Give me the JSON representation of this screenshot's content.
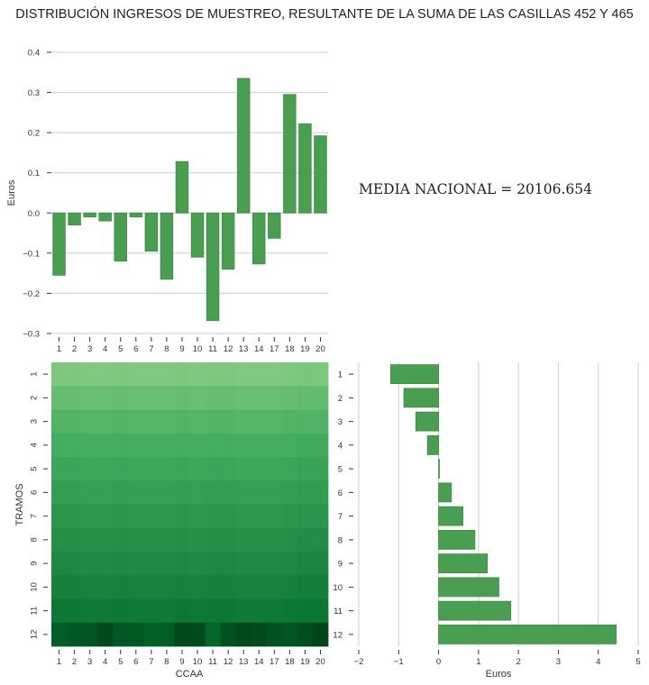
{
  "title": "DISTRIBUCIÓN INGRESOS DE MUESTREO, RESULTANTE DE LA SUMA DE LAS CASILLAS 452 Y 465",
  "annotation": "MEDIA NACIONAL = 20106.654",
  "colors": {
    "bar": "#4a9e51",
    "bar_edge": "#3d8a44",
    "grid": "#cccccc"
  },
  "chart_data": [
    {
      "type": "bar",
      "categories": [
        "1",
        "2",
        "3",
        "4",
        "5",
        "6",
        "7",
        "8",
        "9",
        "10",
        "11",
        "12",
        "13",
        "14",
        "17",
        "18",
        "19",
        "20"
      ],
      "values": [
        -0.155,
        -0.03,
        -0.01,
        -0.02,
        -0.12,
        -0.01,
        -0.095,
        -0.165,
        0.128,
        -0.11,
        -0.268,
        -0.14,
        0.335,
        -0.127,
        -0.063,
        0.295,
        0.222,
        0.192
      ],
      "title": "",
      "xlabel": "",
      "ylabel": "Euros",
      "ylim": [
        -0.3,
        0.4
      ],
      "yticks": [
        -0.3,
        -0.2,
        -0.1,
        0.0,
        0.1,
        0.2,
        0.3,
        0.4
      ],
      "ytick_labels": [
        "−0.3",
        "−0.2",
        "−0.1",
        "0.0",
        "0.1",
        "0.2",
        "0.3",
        "0.4"
      ],
      "grid": true
    },
    {
      "type": "heatmap",
      "xlabel": "CCAA",
      "ylabel": "TRAMOS",
      "x": [
        "1",
        "2",
        "3",
        "4",
        "5",
        "6",
        "7",
        "8",
        "9",
        "10",
        "11",
        "12",
        "13",
        "14",
        "17",
        "18",
        "19",
        "20"
      ],
      "y": [
        "1",
        "2",
        "3",
        "4",
        "5",
        "6",
        "7",
        "8",
        "9",
        "10",
        "11",
        "12"
      ],
      "values": [
        [
          0.3,
          0.3,
          0.29,
          0.29,
          0.3,
          0.29,
          0.29,
          0.29,
          0.3,
          0.29,
          0.3,
          0.3,
          0.29,
          0.29,
          0.29,
          0.3,
          0.31,
          0.3
        ],
        [
          0.38,
          0.38,
          0.37,
          0.37,
          0.38,
          0.37,
          0.37,
          0.37,
          0.38,
          0.37,
          0.38,
          0.38,
          0.37,
          0.37,
          0.37,
          0.38,
          0.39,
          0.39
        ],
        [
          0.44,
          0.44,
          0.43,
          0.43,
          0.44,
          0.43,
          0.43,
          0.43,
          0.44,
          0.43,
          0.44,
          0.44,
          0.43,
          0.43,
          0.43,
          0.44,
          0.45,
          0.45
        ],
        [
          0.49,
          0.49,
          0.48,
          0.48,
          0.49,
          0.48,
          0.48,
          0.48,
          0.49,
          0.48,
          0.49,
          0.49,
          0.48,
          0.48,
          0.48,
          0.49,
          0.5,
          0.5
        ],
        [
          0.53,
          0.53,
          0.52,
          0.52,
          0.53,
          0.52,
          0.52,
          0.52,
          0.53,
          0.52,
          0.53,
          0.53,
          0.52,
          0.52,
          0.52,
          0.53,
          0.54,
          0.54
        ],
        [
          0.57,
          0.57,
          0.56,
          0.56,
          0.57,
          0.56,
          0.56,
          0.56,
          0.57,
          0.56,
          0.57,
          0.57,
          0.56,
          0.56,
          0.56,
          0.57,
          0.58,
          0.58
        ],
        [
          0.61,
          0.61,
          0.6,
          0.6,
          0.61,
          0.6,
          0.6,
          0.6,
          0.61,
          0.6,
          0.61,
          0.61,
          0.6,
          0.6,
          0.6,
          0.61,
          0.62,
          0.62
        ],
        [
          0.65,
          0.65,
          0.64,
          0.64,
          0.65,
          0.64,
          0.64,
          0.64,
          0.65,
          0.64,
          0.65,
          0.65,
          0.64,
          0.64,
          0.64,
          0.65,
          0.66,
          0.66
        ],
        [
          0.69,
          0.69,
          0.68,
          0.68,
          0.69,
          0.68,
          0.68,
          0.68,
          0.69,
          0.68,
          0.69,
          0.69,
          0.68,
          0.68,
          0.68,
          0.69,
          0.7,
          0.7
        ],
        [
          0.73,
          0.73,
          0.72,
          0.72,
          0.73,
          0.72,
          0.72,
          0.72,
          0.73,
          0.72,
          0.73,
          0.73,
          0.72,
          0.72,
          0.72,
          0.73,
          0.74,
          0.74
        ],
        [
          0.77,
          0.77,
          0.76,
          0.76,
          0.77,
          0.76,
          0.76,
          0.76,
          0.77,
          0.76,
          0.77,
          0.77,
          0.76,
          0.76,
          0.76,
          0.77,
          0.78,
          0.78
        ],
        [
          0.9,
          0.92,
          0.93,
          0.98,
          0.92,
          0.92,
          0.88,
          0.9,
          0.98,
          0.98,
          0.86,
          0.95,
          0.99,
          0.98,
          0.94,
          0.93,
          0.96,
          1.0
        ]
      ]
    },
    {
      "type": "bar",
      "orientation": "horizontal",
      "categories": [
        "1",
        "2",
        "3",
        "4",
        "5",
        "6",
        "7",
        "8",
        "9",
        "10",
        "11",
        "12"
      ],
      "values": [
        -1.2,
        -0.87,
        -0.57,
        -0.28,
        0.02,
        0.32,
        0.61,
        0.91,
        1.22,
        1.51,
        1.81,
        4.45
      ],
      "xlabel": "Euros",
      "ylabel": "",
      "xlim": [
        -2,
        5
      ],
      "xticks": [
        -2,
        -1,
        0,
        1,
        2,
        3,
        4,
        5
      ],
      "xtick_labels": [
        "−2",
        "−1",
        "0",
        "1",
        "2",
        "3",
        "4",
        "5"
      ],
      "grid": true
    }
  ]
}
